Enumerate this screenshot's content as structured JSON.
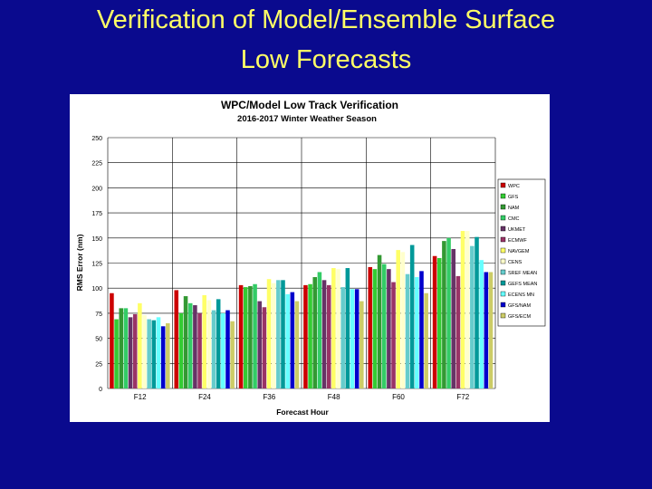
{
  "slide": {
    "title_line1": "Verification of Model/Ensemble Surface",
    "title_line2": "Low Forecasts"
  },
  "chart_data": {
    "type": "bar",
    "title": "WPC/Model Low Track Verification",
    "subtitle": "2016-2017 Winter Weather Season",
    "xlabel": "Forecast Hour",
    "ylabel": "RMS Error (nm)",
    "ylim": [
      0,
      250
    ],
    "yticks": [
      0,
      25,
      50,
      75,
      100,
      125,
      150,
      175,
      200,
      225,
      250
    ],
    "grid": true,
    "legend_position": "right",
    "categories": [
      "F12",
      "F24",
      "F36",
      "F48",
      "F60",
      "F72"
    ],
    "series": [
      {
        "name": "WPC",
        "color": "#cc0000",
        "values": [
          95,
          98,
          103,
          103,
          121,
          132
        ]
      },
      {
        "name": "GFS",
        "color": "#33cc33",
        "values": [
          69,
          75,
          101,
          104,
          119,
          130
        ]
      },
      {
        "name": "NAM",
        "color": "#339933",
        "values": [
          80,
          92,
          102,
          111,
          133,
          147
        ]
      },
      {
        "name": "CMC",
        "color": "#33cc66",
        "values": [
          80,
          85,
          104,
          116,
          124,
          150
        ]
      },
      {
        "name": "UKMET",
        "color": "#663366",
        "values": [
          71,
          83,
          87,
          108,
          119,
          139
        ]
      },
      {
        "name": "ECMWF",
        "color": "#993366",
        "values": [
          74,
          75,
          81,
          103,
          106,
          112
        ]
      },
      {
        "name": "NAVGEM",
        "color": "#ffff66",
        "values": [
          85,
          93,
          109,
          120,
          138,
          157
        ]
      },
      {
        "name": "CENS",
        "color": "#ffffcc",
        "values": [
          73,
          88,
          105,
          119,
          136,
          157
        ]
      },
      {
        "name": "SREF MEAN",
        "color": "#66cccc",
        "values": [
          69,
          78,
          108,
          101,
          114,
          142
        ]
      },
      {
        "name": "GEFS MEAN",
        "color": "#009999",
        "values": [
          68,
          89,
          108,
          120,
          143,
          151
        ]
      },
      {
        "name": "ECENS MN",
        "color": "#66ffff",
        "values": [
          71,
          75,
          94,
          99,
          111,
          128
        ]
      },
      {
        "name": "GFS/NAM",
        "color": "#0000cc",
        "values": [
          62,
          78,
          96,
          99,
          117,
          116
        ]
      },
      {
        "name": "GFS/ECM",
        "color": "#cccc66",
        "values": [
          65,
          67,
          87,
          87,
          95,
          116
        ]
      }
    ]
  }
}
